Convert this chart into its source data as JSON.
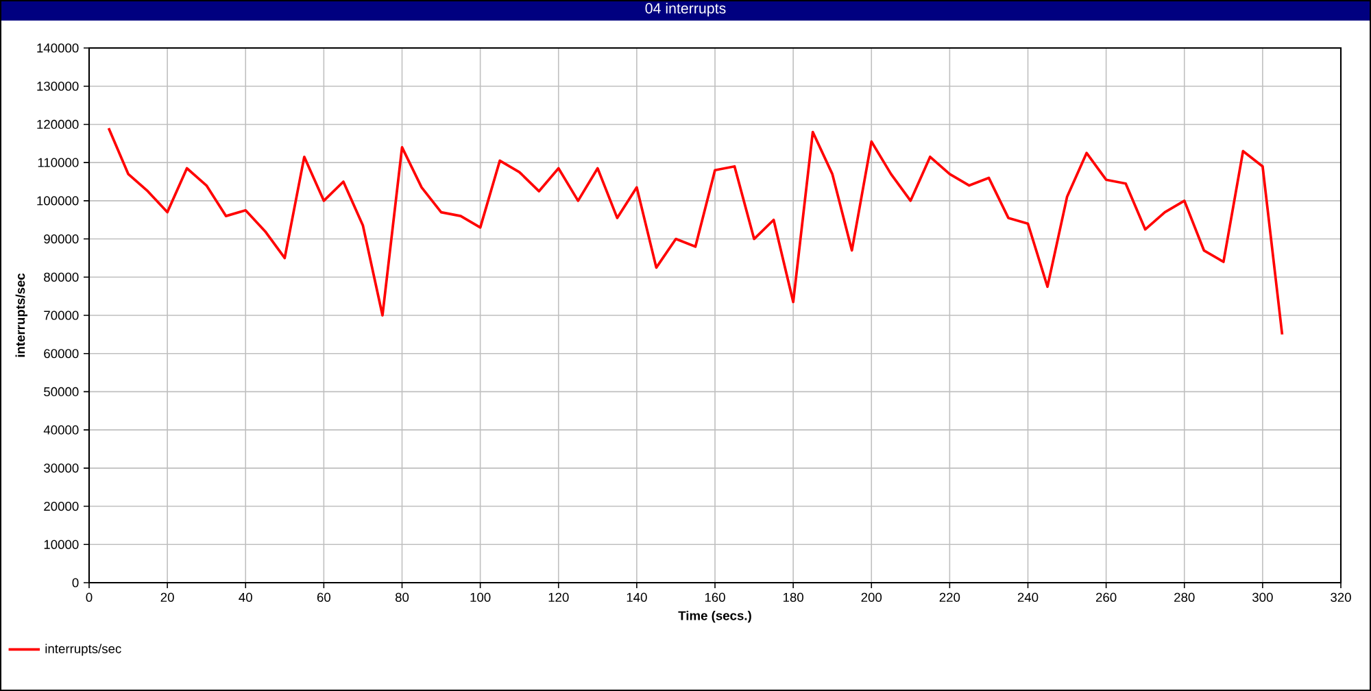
{
  "chart_data": {
    "type": "line",
    "title": "04 interrupts",
    "xlabel": "Time (secs.)",
    "ylabel": "interrupts/sec",
    "x": [
      5,
      10,
      15,
      20,
      25,
      30,
      35,
      40,
      45,
      50,
      55,
      60,
      65,
      70,
      75,
      80,
      85,
      90,
      95,
      100,
      105,
      110,
      115,
      120,
      125,
      130,
      135,
      140,
      145,
      150,
      155,
      160,
      165,
      170,
      175,
      180,
      185,
      190,
      195,
      200,
      205,
      210,
      215,
      220,
      225,
      230,
      235,
      240,
      245,
      250,
      255,
      260,
      265,
      270,
      275,
      280,
      285,
      290,
      295,
      300,
      305
    ],
    "series": [
      {
        "name": "interrupts/sec",
        "color": "#ff0000",
        "values": [
          119000,
          107000,
          102500,
          97000,
          108500,
          104000,
          96000,
          97500,
          92000,
          85000,
          111500,
          100000,
          105000,
          93500,
          70000,
          114000,
          103500,
          97000,
          96000,
          93000,
          110500,
          107500,
          102500,
          108500,
          100000,
          108500,
          95500,
          103500,
          82500,
          90000,
          88000,
          108000,
          109000,
          90000,
          95000,
          73500,
          118000,
          107000,
          87000,
          115500,
          107000,
          100000,
          111500,
          107000,
          104000,
          106000,
          95500,
          94000,
          77500,
          101000,
          112500,
          105500,
          104500,
          92500,
          97000,
          100000,
          87000,
          84000,
          113000,
          109000,
          65000
        ]
      }
    ],
    "xlim": [
      0,
      320
    ],
    "ylim": [
      0,
      140000
    ],
    "xticks": [
      0,
      20,
      40,
      60,
      80,
      100,
      120,
      140,
      160,
      180,
      200,
      220,
      240,
      260,
      280,
      300,
      320
    ],
    "yticks": [
      0,
      10000,
      20000,
      30000,
      40000,
      50000,
      60000,
      70000,
      80000,
      90000,
      100000,
      110000,
      120000,
      130000,
      140000
    ],
    "grid": true,
    "legend": "bottom left",
    "marker": "none",
    "line_style": "solid"
  }
}
